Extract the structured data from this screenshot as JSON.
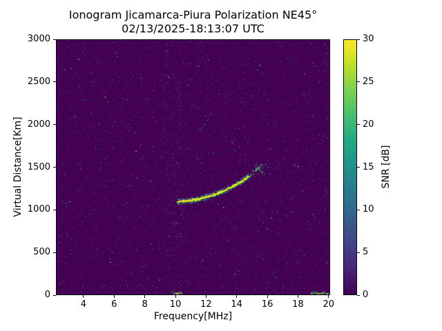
{
  "chart_data": {
    "type": "heatmap",
    "title": "Ionogram Jicamarca-Piura Polarization NE45°",
    "subtitle": "02/13/2025-18:13:07 UTC",
    "xlabel": "Frequency[MHz]",
    "ylabel": "Virtual Distance[Km]",
    "xlim": [
      2.2,
      20.1
    ],
    "ylim": [
      0,
      3000
    ],
    "xticks": [
      4,
      6,
      8,
      10,
      12,
      14,
      16,
      18,
      20
    ],
    "yticks": [
      0,
      500,
      1000,
      1500,
      2000,
      2500,
      3000
    ],
    "colormap": "viridis",
    "background_color": "#440154",
    "grid": false,
    "legend": false,
    "colorbar": {
      "label": "SNR [dB]",
      "min": 0,
      "max": 30,
      "ticks": [
        0,
        5,
        10,
        15,
        20,
        25,
        30
      ]
    },
    "main_trace": {
      "description": "bright F-region ionogram echo trace",
      "points_mhz_km": [
        [
          10.1,
          1095
        ],
        [
          10.4,
          1098
        ],
        [
          10.8,
          1105
        ],
        [
          11.2,
          1115
        ],
        [
          11.6,
          1130
        ],
        [
          12.0,
          1150
        ],
        [
          12.4,
          1172
        ],
        [
          12.8,
          1198
        ],
        [
          13.2,
          1228
        ],
        [
          13.6,
          1262
        ],
        [
          14.0,
          1300
        ],
        [
          14.4,
          1345
        ],
        [
          14.8,
          1398
        ],
        [
          15.1,
          1442
        ],
        [
          15.4,
          1482
        ],
        [
          15.7,
          1518
        ]
      ],
      "snr_db": 29,
      "solid_until_mhz": 14.8,
      "scatter_region": {
        "f_mhz": [
          15.2,
          15.9
        ],
        "km": [
          1420,
          1535
        ],
        "snr_db": 20
      }
    },
    "second_hop_trace": {
      "description": "faint second-order echo arc",
      "points_mhz_km": [
        [
          11.45,
          1900
        ],
        [
          11.7,
          1950
        ],
        [
          11.9,
          2000
        ],
        [
          12.1,
          2060
        ],
        [
          12.3,
          2120
        ],
        [
          12.45,
          2170
        ]
      ],
      "snr_db": 10
    },
    "sub_trace_cluster": {
      "points_mhz_km": [
        [
          10.4,
          945
        ],
        [
          10.45,
          975
        ],
        [
          10.5,
          1000
        ]
      ],
      "snr_db": 9
    },
    "ground_clutter_segments": [
      {
        "f_mhz": [
          9.85,
          10.45
        ],
        "km": 0,
        "snr_db": 24
      },
      {
        "f_mhz": [
          18.85,
          20.05
        ],
        "km": 0,
        "snr_db": 22
      }
    ],
    "interference_bands": [
      {
        "f_mhz": [
          9.1,
          10.45
        ],
        "extra_density": 0.06
      }
    ],
    "noise": {
      "density": 0.035,
      "snr_db_range": [
        0,
        8
      ]
    }
  }
}
